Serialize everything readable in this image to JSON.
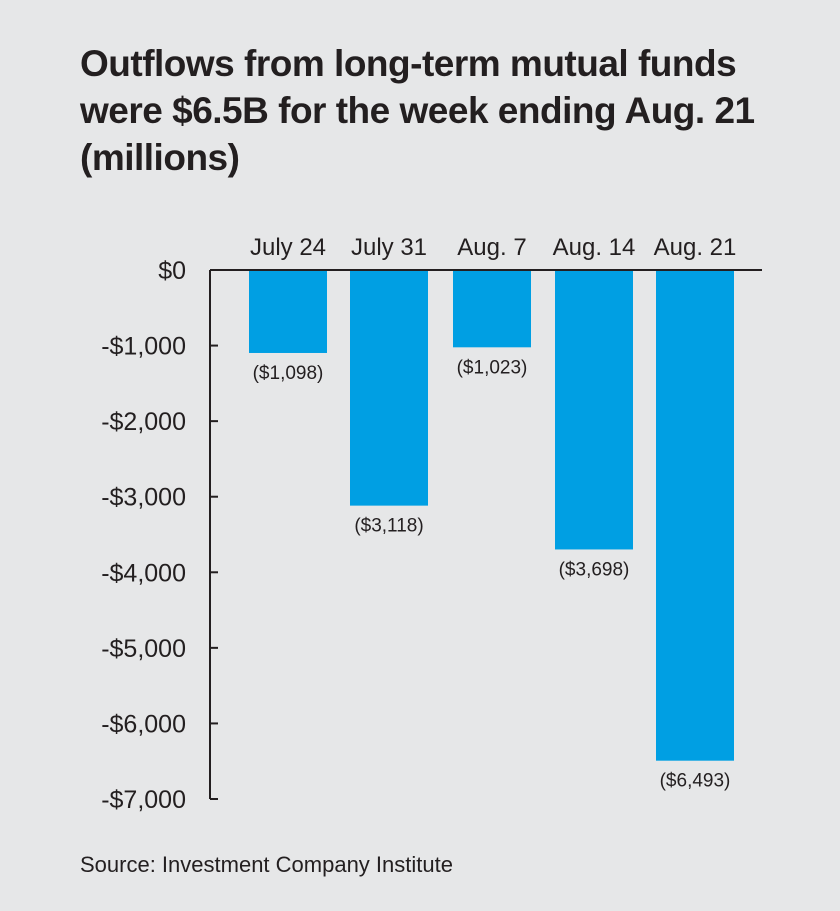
{
  "title_lines": [
    "Outflows from long-term mutual funds",
    "were $6.5B for the week ending Aug. 21",
    "(millions)"
  ],
  "source": "Source: Investment Company Institute",
  "colors": {
    "bar": "#009fe3",
    "axis": "#231f20",
    "background": "#e6e7e8"
  },
  "chart_data": {
    "type": "bar",
    "title": "Outflows from long-term mutual funds were $6.5B for the week ending Aug. 21 (millions)",
    "categories": [
      "July 24",
      "July 31",
      "Aug. 7",
      "Aug. 14",
      "Aug. 21"
    ],
    "values": [
      -1098,
      -3118,
      -1023,
      -3698,
      -6493
    ],
    "data_labels": [
      "($1,098)",
      "($3,118)",
      "($1,023)",
      "($3,698)",
      "($6,493)"
    ],
    "y_ticks": [
      0,
      -1000,
      -2000,
      -3000,
      -4000,
      -5000,
      -6000,
      -7000
    ],
    "y_tick_labels": [
      "$0",
      "-$1,000",
      "-$2,000",
      "-$3,000",
      "-$4,000",
      "-$5,000",
      "-$6,000",
      "-$7,000"
    ],
    "ylim": [
      -7000,
      0
    ],
    "xlabel": "",
    "ylabel": "",
    "grid": false,
    "category_labels_position": "top"
  }
}
